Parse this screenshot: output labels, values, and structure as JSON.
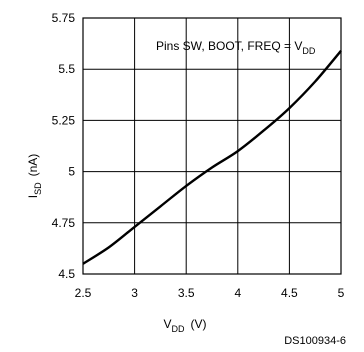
{
  "chart_data": {
    "type": "line",
    "title": "",
    "xlabel_main": "V",
    "xlabel_sub": "DD",
    "xlabel_unit": "(V)",
    "ylabel_main": "I",
    "ylabel_sub": "SD",
    "ylabel_unit": "(nA)",
    "xlim": [
      2.5,
      5
    ],
    "ylim": [
      4.5,
      5.75
    ],
    "xticks": [
      "2.5",
      "3",
      "3.5",
      "4",
      "4.5",
      "5"
    ],
    "yticks": [
      "4.5",
      "4.75",
      "5",
      "5.25",
      "5.5",
      "5.75"
    ],
    "grid": true,
    "annotation_main": "Pins SW, BOOT, FREQ = V",
    "annotation_sub": "DD",
    "figure_code": "DS100934-6",
    "series": [
      {
        "x": [
          2.5,
          2.75,
          3.0,
          3.25,
          3.5,
          3.75,
          4.0,
          4.25,
          4.5,
          4.75,
          5.0
        ],
        "y": [
          4.55,
          4.63,
          4.73,
          4.83,
          4.93,
          5.02,
          5.1,
          5.2,
          5.31,
          5.44,
          5.59
        ]
      }
    ]
  }
}
